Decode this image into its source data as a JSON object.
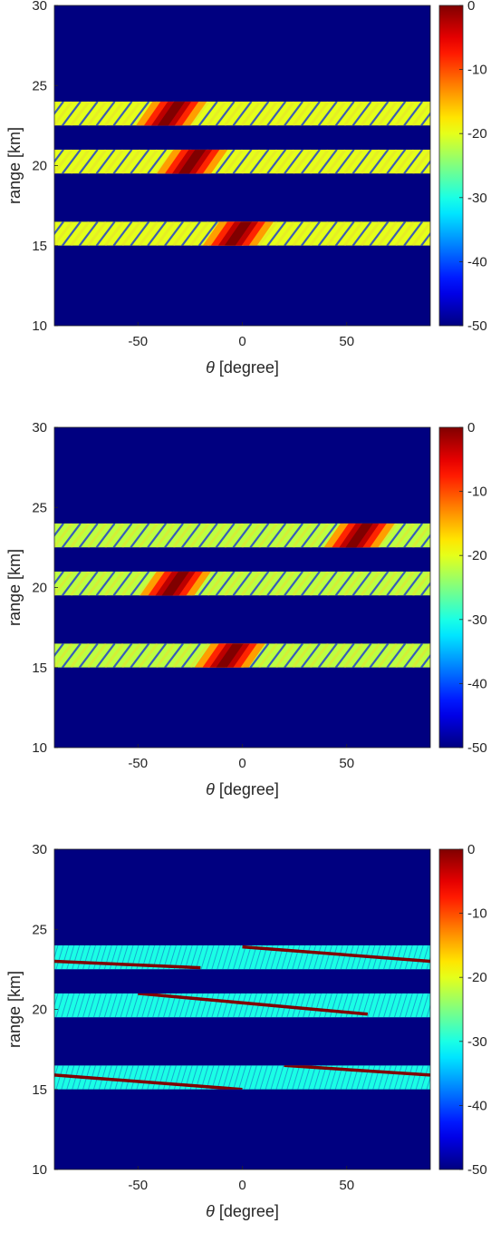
{
  "chart_data": [
    {
      "type": "heatmap",
      "xlabel_symbol": "θ",
      "xlabel_unit": " [degree]",
      "ylabel": "range [km]",
      "xlim": [
        -90,
        90
      ],
      "ylim": [
        10,
        30
      ],
      "x_ticks": [
        -50,
        0,
        50
      ],
      "y_ticks": [
        10,
        15,
        20,
        25,
        30
      ],
      "colorbar": {
        "colormap": "jet",
        "range": [
          -50,
          0
        ],
        "ticks": [
          0,
          -10,
          -20,
          -30,
          -40,
          -50
        ]
      },
      "background_value": -50,
      "bands": [
        {
          "range_km": [
            22.5,
            24.0
          ],
          "peak_value": 0,
          "peak_theta_top": -30,
          "peak_theta_bottom": -38,
          "background_level": -20
        },
        {
          "range_km": [
            19.5,
            21.0
          ],
          "peak_value": 0,
          "peak_theta_top": -20,
          "peak_theta_bottom": -28,
          "background_level": -20
        },
        {
          "range_km": [
            15.0,
            16.5
          ],
          "peak_value": 0,
          "peak_theta_top": 2,
          "peak_theta_bottom": -6,
          "background_level": -20
        }
      ]
    },
    {
      "type": "heatmap",
      "xlabel_symbol": "θ",
      "xlabel_unit": " [degree]",
      "ylabel": "range [km]",
      "xlim": [
        -90,
        90
      ],
      "ylim": [
        10,
        30
      ],
      "x_ticks": [
        -50,
        0,
        50
      ],
      "y_ticks": [
        10,
        15,
        20,
        25,
        30
      ],
      "colorbar": {
        "colormap": "jet",
        "range": [
          -50,
          0
        ],
        "ticks": [
          0,
          -10,
          -20,
          -30,
          -40,
          -50
        ]
      },
      "background_value": -50,
      "bands": [
        {
          "range_km": [
            22.5,
            24.0
          ],
          "peak_value": 0,
          "peak_theta_top": 60,
          "peak_theta_bottom": 52,
          "background_level": -22
        },
        {
          "range_km": [
            19.5,
            21.0
          ],
          "peak_value": 0,
          "peak_theta_top": -28,
          "peak_theta_bottom": -36,
          "background_level": -22
        },
        {
          "range_km": [
            15.0,
            16.5
          ],
          "peak_value": 0,
          "peak_theta_top": -2,
          "peak_theta_bottom": -10,
          "background_level": -22
        }
      ]
    },
    {
      "type": "heatmap",
      "xlabel_symbol": "θ",
      "xlabel_unit": " [degree]",
      "ylabel": "range [km]",
      "xlim": [
        -90,
        90
      ],
      "ylim": [
        10,
        30
      ],
      "x_ticks": [
        -50,
        0,
        50
      ],
      "y_ticks": [
        10,
        15,
        20,
        25,
        30
      ],
      "colorbar": {
        "colormap": "jet",
        "range": [
          -50,
          0
        ],
        "ticks": [
          0,
          -10,
          -20,
          -30,
          -40,
          -50
        ]
      },
      "background_value": -50,
      "bands": [
        {
          "range_km": [
            22.5,
            24.0
          ],
          "peak_value": 0,
          "background_level": -30,
          "ridges": [
            {
              "theta": [
                -90,
                -20
              ],
              "range": [
                23.0,
                22.6
              ]
            },
            {
              "theta": [
                0,
                90
              ],
              "range": [
                23.9,
                23.0
              ]
            }
          ]
        },
        {
          "range_km": [
            19.5,
            21.0
          ],
          "peak_value": 0,
          "background_level": -30,
          "ridges": [
            {
              "theta": [
                -50,
                60
              ],
              "range": [
                21.0,
                19.7
              ]
            }
          ]
        },
        {
          "range_km": [
            15.0,
            16.5
          ],
          "peak_value": 0,
          "background_level": -30,
          "ridges": [
            {
              "theta": [
                -90,
                0
              ],
              "range": [
                15.9,
                15.0
              ]
            },
            {
              "theta": [
                20,
                90
              ],
              "range": [
                16.5,
                15.9
              ]
            }
          ]
        }
      ]
    }
  ]
}
